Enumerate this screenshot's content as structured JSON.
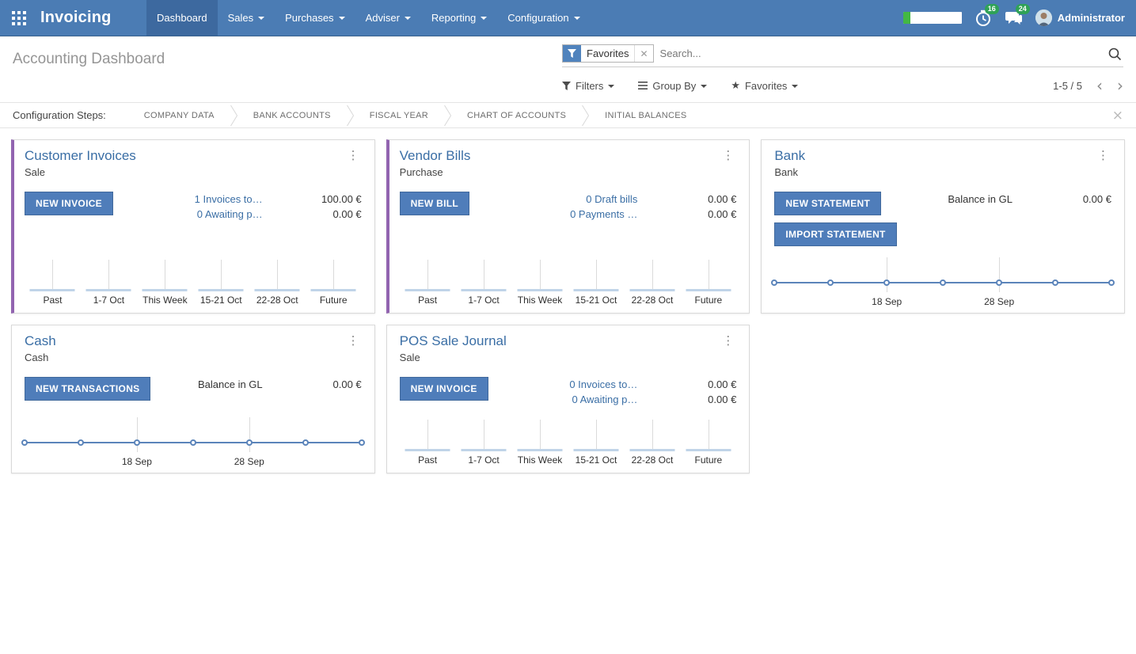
{
  "app": {
    "brand": "Invoicing"
  },
  "nav": {
    "items": [
      "Dashboard",
      "Sales",
      "Purchases",
      "Adviser",
      "Reporting",
      "Configuration"
    ],
    "active_item": "Dashboard",
    "progress_percent": 12,
    "timer_badge": "16",
    "messages_badge": "24",
    "user_name": "Administrator"
  },
  "control_panel": {
    "title": "Accounting Dashboard",
    "search_facet": "Favorites",
    "search_placeholder": "Search...",
    "filters_label": "Filters",
    "group_by_label": "Group By",
    "favorites_label": "Favorites",
    "pager": "1-5 / 5"
  },
  "config_bar": {
    "label": "Configuration Steps:",
    "steps": [
      "COMPANY DATA",
      "BANK ACCOUNTS",
      "FISCAL YEAR",
      "CHART OF ACCOUNTS",
      "INITIAL BALANCES"
    ]
  },
  "cards": [
    {
      "title": "Customer Invoices",
      "subtitle": "Sale",
      "buttons": [
        "NEW INVOICE"
      ],
      "rows": [
        {
          "link": "1 Invoices to…",
          "amount": "100.00 €"
        },
        {
          "link": "0 Awaiting p…",
          "amount": "0.00 €"
        }
      ],
      "chart": {
        "type": "bar",
        "labels": [
          "Past",
          "1-7 Oct",
          "This Week",
          "15-21 Oct",
          "22-28 Oct",
          "Future"
        ],
        "values": [
          0,
          0,
          0,
          0,
          0,
          0
        ]
      }
    },
    {
      "title": "Vendor Bills",
      "subtitle": "Purchase",
      "buttons": [
        "NEW BILL"
      ],
      "rows": [
        {
          "link": "0 Draft bills",
          "amount": "0.00 €"
        },
        {
          "link": "0 Payments …",
          "amount": "0.00 €"
        }
      ],
      "chart": {
        "type": "bar",
        "labels": [
          "Past",
          "1-7 Oct",
          "This Week",
          "15-21 Oct",
          "22-28 Oct",
          "Future"
        ],
        "values": [
          0,
          0,
          0,
          0,
          0,
          0
        ]
      }
    },
    {
      "title": "Bank",
      "subtitle": "Bank",
      "buttons": [
        "NEW STATEMENT",
        "IMPORT STATEMENT"
      ],
      "rows": [
        {
          "label": "Balance in GL",
          "amount": "0.00 €"
        }
      ],
      "chart": {
        "type": "line",
        "labels": [
          "18 Sep",
          "28 Sep"
        ],
        "values": [
          0,
          0,
          0,
          0,
          0,
          0,
          0
        ]
      }
    },
    {
      "title": "Cash",
      "subtitle": "Cash",
      "buttons": [
        "NEW TRANSACTIONS"
      ],
      "rows": [
        {
          "label": "Balance in GL",
          "amount": "0.00 €"
        }
      ],
      "chart": {
        "type": "line",
        "labels": [
          "18 Sep",
          "28 Sep"
        ],
        "values": [
          0,
          0,
          0,
          0,
          0,
          0,
          0
        ]
      }
    },
    {
      "title": "POS Sale Journal",
      "subtitle": "Sale",
      "buttons": [
        "NEW INVOICE"
      ],
      "rows": [
        {
          "link": "0 Invoices to…",
          "amount": "0.00 €"
        },
        {
          "link": "0 Awaiting p…",
          "amount": "0.00 €"
        }
      ],
      "chart": {
        "type": "bar",
        "labels": [
          "Past",
          "1-7 Oct",
          "This Week",
          "15-21 Oct",
          "22-28 Oct",
          "Future"
        ],
        "values": [
          0,
          0,
          0,
          0,
          0,
          0
        ]
      }
    }
  ],
  "icons": {
    "apps": "grid-3x3",
    "timer": "clock-history",
    "messages": "chat-bubbles",
    "search": "magnifier",
    "filter": "funnel",
    "group_by": "hamburger",
    "favorites": "star",
    "kebab": "⋮",
    "close": "×",
    "prev": "‹",
    "next": "›"
  },
  "colors": {
    "navbar": "#4b7cb4",
    "navbar_active": "#3d699f",
    "link_blue": "#3a6ea5",
    "button_blue": "#4f7dba",
    "accent_purple": "#9264b0",
    "badge_green": "#2fa257",
    "progress_green": "#43b843",
    "bar_fill": "#c0d4e8",
    "line_blue": "#5b84ba"
  }
}
